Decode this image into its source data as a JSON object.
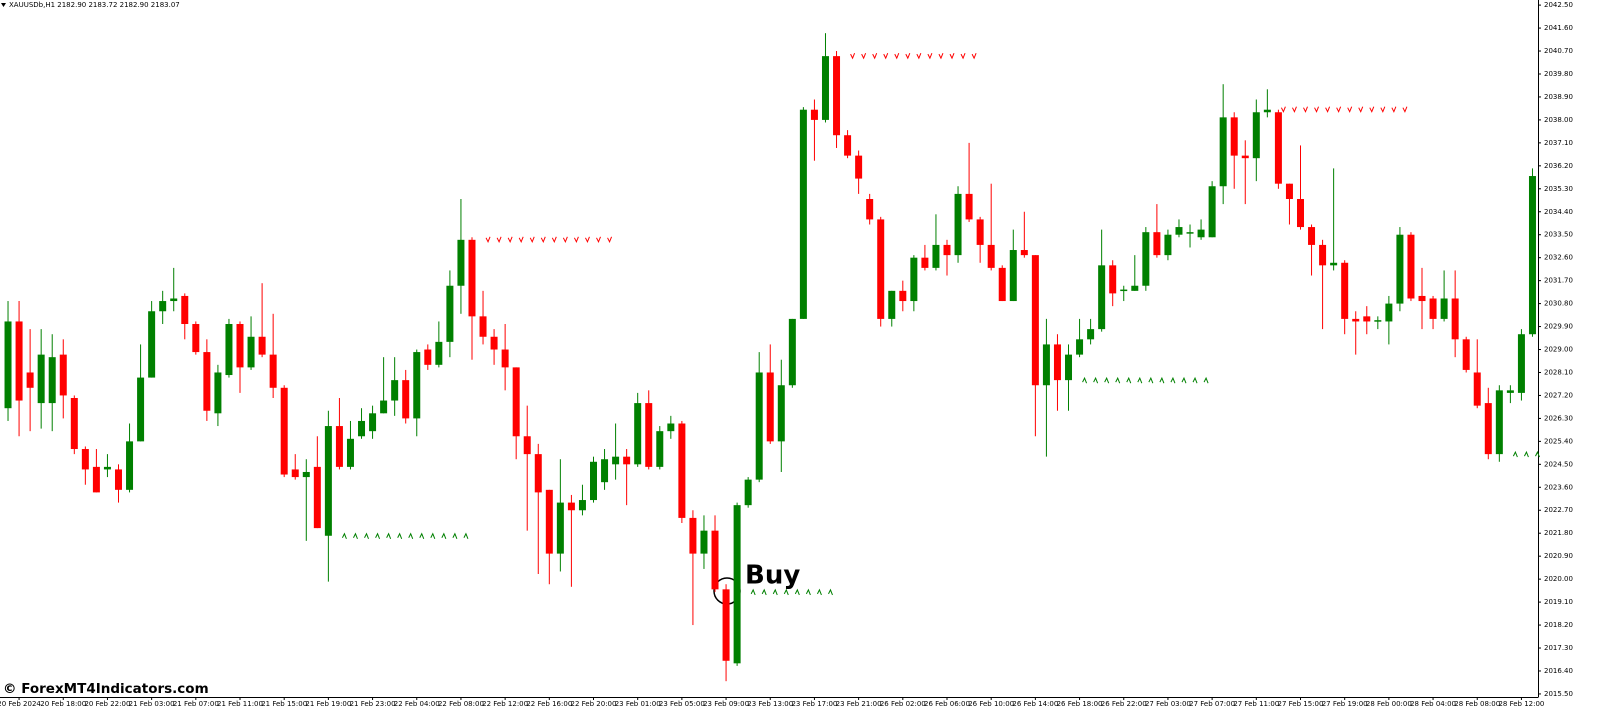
{
  "chart_data": {
    "type": "candlestick",
    "title": "XAUUSDb,H1  2182.90 2183.72 2182.90 2183.07",
    "annotation": "Buy",
    "watermark": "© ForexMT4Indicators.com",
    "up_color": "#008000",
    "down_color": "#ff0000",
    "categories": [
      null,
      "20 Feb 2024",
      null,
      null,
      null,
      "20 Feb 18:00",
      null,
      null,
      null,
      "20 Feb 22:00",
      null,
      null,
      null,
      "21 Feb 03:00",
      null,
      null,
      null,
      "21 Feb 07:00",
      null,
      null,
      null,
      "21 Feb 11:00",
      null,
      null,
      null,
      "21 Feb 15:00",
      null,
      null,
      null,
      "21 Feb 19:00",
      null,
      null,
      null,
      "21 Feb 23:00",
      null,
      null,
      null,
      "22 Feb 04:00",
      null,
      null,
      null,
      "22 Feb 08:00",
      null,
      null,
      null,
      "22 Feb 12:00",
      null,
      null,
      null,
      "22 Feb 16:00",
      null,
      null,
      null,
      "22 Feb 20:00",
      null,
      null,
      null,
      "23 Feb 01:00",
      null,
      null,
      null,
      "23 Feb 05:00",
      null,
      null,
      null,
      "23 Feb 09:00",
      null,
      null,
      null,
      "23 Feb 13:00",
      null,
      null,
      null,
      "23 Feb 17:00",
      null,
      null,
      null,
      "23 Feb 21:00",
      null,
      null,
      null,
      "26 Feb 02:00",
      null,
      null,
      null,
      "26 Feb 06:00",
      null,
      null,
      null,
      "26 Feb 10:00",
      null,
      null,
      null,
      "26 Feb 14:00",
      null,
      null,
      null,
      "26 Feb 18:00",
      null,
      null,
      null,
      "26 Feb 22:00",
      null,
      null,
      null,
      "27 Feb 03:00",
      null,
      null,
      null,
      "27 Feb 07:00",
      null,
      null,
      null,
      "27 Feb 11:00",
      null,
      null,
      null,
      "27 Feb 15:00",
      null,
      null,
      null,
      "27 Feb 19:00",
      null,
      null,
      null,
      "28 Feb 00:00",
      null,
      null,
      null,
      "28 Feb 04:00",
      null,
      null,
      null,
      "28 Feb 08:00",
      null,
      null,
      null,
      "28 Feb 12:00",
      null
    ],
    "open": [
      2026.7,
      2030.1,
      2028.1,
      2026.9,
      2026.9,
      2028.8,
      2027.1,
      2025.1,
      2024.4,
      2024.3,
      2024.3,
      2023.5,
      2025.4,
      2027.9,
      2030.5,
      2030.9,
      2031.1,
      2030.0,
      2028.9,
      2026.5,
      2028.0,
      2030.0,
      2028.3,
      2029.5,
      2028.8,
      2027.5,
      2024.3,
      2024.0,
      2024.4,
      2021.7,
      2026.0,
      2024.4,
      2025.6,
      2025.8,
      2026.5,
      2027.0,
      2027.8,
      2026.3,
      2029.0,
      2028.4,
      2029.3,
      2031.5,
      2033.3,
      2030.3,
      2029.5,
      2029.0,
      2028.3,
      2025.6,
      2024.9,
      2023.5,
      2021.0,
      2023.0,
      2022.7,
      2023.1,
      2023.8,
      2024.5,
      2024.8,
      2024.5,
      2026.9,
      2024.4,
      2025.8,
      2026.1,
      2022.4,
      2021.0,
      2021.9,
      2019.6,
      2016.7,
      2022.9,
      2023.9,
      2028.1,
      2025.4,
      2027.6,
      2030.2,
      2038.4,
      2038.0,
      2040.5,
      2037.4,
      2036.6,
      2034.9,
      2034.1,
      2030.2,
      2031.3,
      2030.9,
      2032.6,
      2032.2,
      2033.1,
      2032.7,
      2035.1,
      2034.1,
      2033.1,
      2032.2,
      2030.9,
      2032.9,
      2032.7,
      2027.6,
      2029.2,
      2027.8,
      2028.8,
      2029.4,
      2029.8,
      2032.3,
      2031.3,
      2031.3,
      2031.5,
      2033.6,
      2032.7,
      2033.5,
      2033.55,
      2033.4,
      2033.4,
      2035.4,
      2038.1,
      2036.6,
      2036.5,
      2038.3,
      2038.3,
      2035.5,
      2034.9,
      2033.8,
      2033.1,
      2032.3,
      2032.4,
      2030.2,
      2030.3,
      2030.1,
      2030.1,
      2030.8,
      2033.5,
      2031.1,
      2031.0,
      2030.2,
      2031.0,
      2029.4,
      2028.1,
      2026.9,
      2024.9,
      2027.3,
      2027.3,
      2029.6
    ],
    "high": [
      2030.9,
      2030.9,
      2029.8,
      2029.8,
      2029.6,
      2029.4,
      2027.2,
      2025.2,
      2025.1,
      2024.9,
      2024.5,
      2026.1,
      2029.2,
      2030.9,
      2031.3,
      2032.2,
      2031.2,
      2030.1,
      2029.4,
      2028.4,
      2030.2,
      2030.1,
      2030.3,
      2031.6,
      2030.4,
      2027.6,
      2024.9,
      2024.7,
      2025.6,
      2026.6,
      2027.1,
      2026.2,
      2026.7,
      2026.8,
      2028.7,
      2028.7,
      2028.2,
      2029.0,
      2029.2,
      2030.1,
      2032.1,
      2034.9,
      2033.4,
      2031.3,
      2029.8,
      2030.0,
      2028.3,
      2026.8,
      2025.3,
      2023.5,
      2024.7,
      2023.3,
      2023.7,
      2024.8,
      2025.1,
      2026.1,
      2025.1,
      2027.3,
      2027.4,
      2026.0,
      2026.4,
      2026.2,
      2022.7,
      2022.5,
      2022.5,
      2019.8,
      2023.0,
      2024.0,
      2028.9,
      2029.2,
      2028.6,
      2030.2,
      2038.5,
      2038.8,
      2041.4,
      2040.7,
      2037.6,
      2036.8,
      2035.1,
      2034.2,
      2031.3,
      2031.7,
      2032.7,
      2033.1,
      2034.3,
      2033.3,
      2035.4,
      2037.1,
      2034.2,
      2035.5,
      2032.3,
      2033.7,
      2034.4,
      2032.7,
      2030.2,
      2029.6,
      2029.2,
      2030.2,
      2030.2,
      2033.7,
      2032.5,
      2031.5,
      2032.7,
      2033.8,
      2034.7,
      2033.7,
      2034.1,
      2033.9,
      2034.1,
      2035.6,
      2039.4,
      2038.3,
      2037.2,
      2038.8,
      2039.2,
      2038.4,
      2035.5,
      2037.0,
      2033.9,
      2033.3,
      2036.1,
      2032.5,
      2030.5,
      2030.7,
      2030.3,
      2031.1,
      2033.8,
      2033.6,
      2032.2,
      2031.1,
      2032.1,
      2032.1,
      2029.5,
      2029.4,
      2027.5,
      2027.6,
      2027.6,
      2029.8,
      2036.1
    ],
    "low": [
      2026.2,
      2025.6,
      2025.8,
      2025.9,
      2025.8,
      2026.3,
      2024.9,
      2023.7,
      2023.4,
      2024.0,
      2023.0,
      2023.4,
      2025.4,
      2027.9,
      2030.0,
      2030.5,
      2029.4,
      2028.8,
      2026.2,
      2026.0,
      2027.9,
      2027.3,
      2028.2,
      2028.7,
      2027.1,
      2024.0,
      2023.9,
      2021.5,
      2022.0,
      2019.9,
      2024.3,
      2024.3,
      2025.5,
      2025.5,
      2026.5,
      2026.4,
      2026.1,
      2025.6,
      2028.2,
      2028.3,
      2028.7,
      2030.4,
      2028.6,
      2029.2,
      2028.4,
      2027.4,
      2024.7,
      2021.9,
      2020.2,
      2019.8,
      2020.3,
      2019.7,
      2022.5,
      2023.0,
      2023.5,
      2023.9,
      2022.9,
      2024.4,
      2024.3,
      2024.3,
      2025.5,
      2022.2,
      2018.2,
      2020.4,
      2019.5,
      2016.0,
      2016.6,
      2022.8,
      2023.8,
      2025.3,
      2024.2,
      2027.5,
      2030.2,
      2036.4,
      2037.9,
      2036.9,
      2036.5,
      2035.1,
      2033.9,
      2029.9,
      2029.9,
      2030.5,
      2030.5,
      2032.1,
      2032.1,
      2031.9,
      2032.4,
      2034.0,
      2032.4,
      2032.1,
      2030.9,
      2030.9,
      2032.6,
      2025.6,
      2024.8,
      2026.6,
      2026.6,
      2028.7,
      2029.2,
      2029.7,
      2030.7,
      2030.9,
      2031.3,
      2031.3,
      2032.6,
      2032.5,
      2033.4,
      2033.0,
      2033.3,
      2033.4,
      2034.7,
      2035.3,
      2034.7,
      2035.6,
      2038.1,
      2035.3,
      2033.9,
      2033.7,
      2031.9,
      2029.8,
      2032.1,
      2029.6,
      2028.8,
      2029.6,
      2029.8,
      2029.2,
      2030.5,
      2030.9,
      2029.8,
      2029.8,
      2030.1,
      2028.7,
      2028.1,
      2026.7,
      2024.7,
      2024.6,
      2026.9,
      2027.0,
      2029.5
    ],
    "close": [
      2030.1,
      2027.0,
      2027.5,
      2028.8,
      2028.7,
      2027.2,
      2025.1,
      2024.3,
      2023.4,
      2024.4,
      2023.5,
      2025.4,
      2027.9,
      2030.5,
      2030.9,
      2031.0,
      2030.0,
      2028.9,
      2026.6,
      2028.1,
      2030.0,
      2028.3,
      2029.5,
      2028.8,
      2027.5,
      2024.1,
      2024.0,
      2024.2,
      2022.0,
      2026.0,
      2024.4,
      2025.5,
      2026.2,
      2026.5,
      2027.0,
      2027.8,
      2026.3,
      2028.9,
      2028.4,
      2029.3,
      2031.5,
      2033.3,
      2030.3,
      2029.5,
      2029.0,
      2028.3,
      2025.6,
      2024.9,
      2023.4,
      2021.0,
      2023.0,
      2022.7,
      2023.1,
      2024.6,
      2024.7,
      2024.8,
      2024.5,
      2026.9,
      2024.4,
      2025.8,
      2026.1,
      2022.4,
      2021.0,
      2021.9,
      2019.6,
      2016.8,
      2022.9,
      2023.9,
      2028.1,
      2025.4,
      2027.6,
      2030.2,
      2038.4,
      2038.0,
      2040.5,
      2037.4,
      2036.6,
      2035.7,
      2034.1,
      2030.2,
      2031.3,
      2030.9,
      2032.6,
      2032.2,
      2033.1,
      2032.7,
      2035.1,
      2034.1,
      2033.1,
      2032.2,
      2030.9,
      2032.9,
      2032.7,
      2027.6,
      2029.2,
      2027.8,
      2028.8,
      2029.4,
      2029.8,
      2032.3,
      2031.2,
      2031.35,
      2031.5,
      2033.6,
      2032.7,
      2033.5,
      2033.8,
      2033.6,
      2033.7,
      2035.4,
      2038.1,
      2036.6,
      2036.5,
      2038.3,
      2038.4,
      2035.5,
      2034.9,
      2033.8,
      2033.1,
      2032.3,
      2032.4,
      2030.2,
      2030.1,
      2030.1,
      2030.15,
      2030.8,
      2033.5,
      2031.0,
      2030.9,
      2030.2,
      2031.0,
      2029.4,
      2028.2,
      2026.8,
      2024.9,
      2027.4,
      2027.4,
      2029.6,
      2035.8
    ],
    "signals": [
      {
        "direction": "sell",
        "price": 2033.3,
        "start": 43,
        "end": 54
      },
      {
        "direction": "sell",
        "price": 2040.5,
        "start": 76,
        "end": 87
      },
      {
        "direction": "sell",
        "price": 2038.4,
        "start": 115,
        "end": 126
      },
      {
        "direction": "buy",
        "price": 2021.7,
        "start": 30,
        "end": 41
      },
      {
        "direction": "buy",
        "price": 2019.5,
        "start": 67,
        "end": 74
      },
      {
        "direction": "buy",
        "price": 2027.8,
        "start": 97,
        "end": 108
      },
      {
        "direction": "buy",
        "price": 2024.9,
        "start": 136,
        "end": 138
      }
    ],
    "ylim": [
      2015.38,
      2042.7
    ],
    "yticks": [
      {
        "value": 2015.5,
        "label": "2015.50"
      },
      {
        "value": 2016.4,
        "label": "2016.40"
      },
      {
        "value": 2017.3,
        "label": "2017.30"
      },
      {
        "value": 2018.2,
        "label": "2018.20"
      },
      {
        "value": 2019.1,
        "label": "2019.10"
      },
      {
        "value": 2020.0,
        "label": "2020.00"
      },
      {
        "value": 2020.9,
        "label": "2020.90"
      },
      {
        "value": 2021.8,
        "label": "2021.80"
      },
      {
        "value": 2022.7,
        "label": "2022.70"
      },
      {
        "value": 2023.6,
        "label": "2023.60"
      },
      {
        "value": 2024.5,
        "label": "2024.50"
      },
      {
        "value": 2025.4,
        "label": "2025.40"
      },
      {
        "value": 2026.3,
        "label": "2026.30"
      },
      {
        "value": 2027.2,
        "label": "2027.20"
      },
      {
        "value": 2028.1,
        "label": "2028.10"
      },
      {
        "value": 2029.0,
        "label": "2029.00"
      },
      {
        "value": 2029.9,
        "label": "2029.90"
      },
      {
        "value": 2030.8,
        "label": "2030.80"
      },
      {
        "value": 2031.7,
        "label": "2031.70"
      },
      {
        "value": 2032.6,
        "label": "2032.60"
      },
      {
        "value": 2033.5,
        "label": "2033.50"
      },
      {
        "value": 2034.4,
        "label": "2034.40"
      },
      {
        "value": 2035.3,
        "label": "2035.30"
      },
      {
        "value": 2036.2,
        "label": "2036.20"
      },
      {
        "value": 2037.1,
        "label": "2037.10"
      },
      {
        "value": 2038.0,
        "label": "2038.00"
      },
      {
        "value": 2038.9,
        "label": "2038.90"
      },
      {
        "value": 2039.8,
        "label": "2039.80"
      },
      {
        "value": 2040.7,
        "label": "2040.70"
      },
      {
        "value": 2041.6,
        "label": "2041.60"
      },
      {
        "value": 2042.5,
        "label": "2042.50"
      }
    ],
    "grid": false
  }
}
